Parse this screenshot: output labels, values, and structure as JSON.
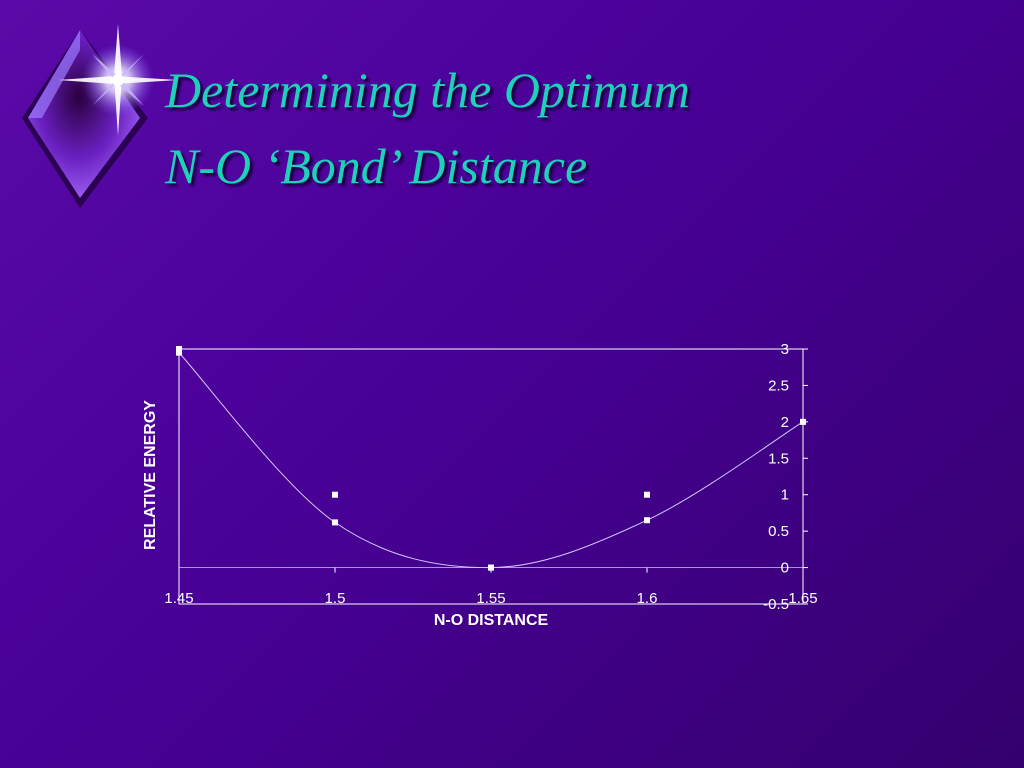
{
  "slide": {
    "title_line1": "Determining the Optimum",
    "title_line2": "N-O ‘Bond’ Distance",
    "logo_icon": "star-diamond-icon"
  },
  "colors": {
    "background": "#4a0099",
    "title": "#1fd1b8",
    "axes": "#ffffff",
    "curve": "#d8c8ff"
  },
  "chart_data": {
    "type": "scatter",
    "title": "",
    "xlabel": "N-O DISTANCE",
    "ylabel": "RELATIVE ENERGY",
    "xlim": [
      1.45,
      1.65
    ],
    "ylim": [
      -0.5,
      3
    ],
    "x_ticks": [
      "1.45",
      "1.5",
      "1.55",
      "1.6",
      "1.65"
    ],
    "y_ticks": [
      "3",
      "2.5",
      "2",
      "1.5",
      "1",
      "0.5",
      "0",
      "-0.5"
    ],
    "y_axis_side": "right",
    "grid": false,
    "legend": "none",
    "series": [
      {
        "x": [
          1.45,
          1.5,
          1.55,
          1.6,
          1.65
        ],
        "y": [
          2.95,
          0.62,
          0,
          0.65,
          2.0
        ]
      },
      {
        "x": [
          1.45,
          1.5,
          1.55,
          1.6
        ],
        "y": [
          3.0,
          1.0,
          0,
          1.0
        ]
      }
    ],
    "fit_curve": "smooth line through first series"
  }
}
